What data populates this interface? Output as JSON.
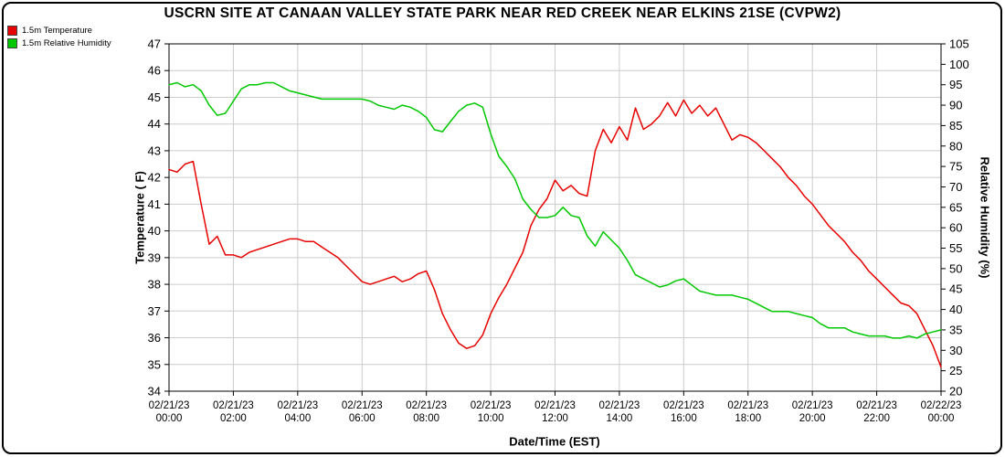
{
  "title": "USCRN SITE AT CANAAN VALLEY STATE PARK NEAR RED CREEK NEAR ELKINS 21SE (CVPW2)",
  "legend": [
    {
      "label": "1.5m Temperature",
      "color": "#e60000"
    },
    {
      "label": "1.5m Relative Humidity",
      "color": "#00c800"
    }
  ],
  "chart_data": {
    "type": "line",
    "title": "USCRN SITE AT CANAAN VALLEY STATE PARK NEAR RED CREEK NEAR ELKINS 21SE (CVPW2)",
    "xlabel": "Date/Time (EST)",
    "ylabel_left": "Temperature ( F)",
    "ylabel_right": "Relative Humidity (%)",
    "ylim_left": [
      34,
      47
    ],
    "ytick_step_left": 1,
    "ylim_right": [
      20,
      105
    ],
    "ytick_step_right": 5,
    "x_start_hour": 0,
    "x_end_hour": 24,
    "x_step_hour": 0.25,
    "grid": true,
    "grid_color": "#cccccc",
    "legend_position": "top-left",
    "x_ticks": [
      {
        "hour": 0,
        "date": "02/21/23",
        "time": "00:00"
      },
      {
        "hour": 2,
        "date": "02/21/23",
        "time": "02:00"
      },
      {
        "hour": 4,
        "date": "02/21/23",
        "time": "04:00"
      },
      {
        "hour": 6,
        "date": "02/21/23",
        "time": "06:00"
      },
      {
        "hour": 8,
        "date": "02/21/23",
        "time": "08:00"
      },
      {
        "hour": 10,
        "date": "02/21/23",
        "time": "10:00"
      },
      {
        "hour": 12,
        "date": "02/21/23",
        "time": "12:00"
      },
      {
        "hour": 14,
        "date": "02/21/23",
        "time": "14:00"
      },
      {
        "hour": 16,
        "date": "02/21/23",
        "time": "16:00"
      },
      {
        "hour": 18,
        "date": "02/21/23",
        "time": "18:00"
      },
      {
        "hour": 20,
        "date": "02/21/23",
        "time": "20:00"
      },
      {
        "hour": 22,
        "date": "02/21/23",
        "time": "22:00"
      },
      {
        "hour": 24,
        "date": "02/22/23",
        "time": "00:00"
      }
    ],
    "series": [
      {
        "name": "1.5m Temperature",
        "axis": "left",
        "color": "#e60000",
        "values": [
          42.3,
          42.2,
          42.5,
          42.6,
          41.0,
          39.5,
          39.8,
          39.1,
          39.1,
          39.0,
          39.2,
          39.3,
          39.4,
          39.5,
          39.6,
          39.7,
          39.7,
          39.6,
          39.6,
          39.4,
          39.2,
          39.0,
          38.7,
          38.4,
          38.1,
          38.0,
          38.1,
          38.2,
          38.3,
          38.1,
          38.2,
          38.4,
          38.5,
          37.8,
          36.9,
          36.3,
          35.8,
          35.6,
          35.7,
          36.1,
          36.9,
          37.5,
          38.0,
          38.6,
          39.2,
          40.2,
          40.8,
          41.2,
          41.9,
          41.5,
          41.7,
          41.4,
          41.3,
          43.0,
          43.8,
          43.3,
          43.9,
          43.4,
          44.6,
          43.8,
          44.0,
          44.3,
          44.8,
          44.3,
          44.9,
          44.4,
          44.7,
          44.3,
          44.6,
          44.0,
          43.4,
          43.6,
          43.5,
          43.3,
          43.0,
          42.7,
          42.4,
          42.0,
          41.7,
          41.3,
          41.0,
          40.6,
          40.2,
          39.9,
          39.6,
          39.2,
          38.9,
          38.5,
          38.2,
          37.9,
          37.6,
          37.3,
          37.2,
          36.9,
          36.3,
          35.7,
          34.9
        ]
      },
      {
        "name": "1.5m Relative Humidity",
        "axis": "right",
        "color": "#00c800",
        "values": [
          95,
          95.5,
          94.5,
          95,
          93.5,
          90,
          87.5,
          88,
          91,
          94,
          95,
          95,
          95.5,
          95.5,
          94.5,
          93.5,
          93,
          92.5,
          92,
          91.5,
          91.5,
          91.5,
          91.5,
          91.5,
          91.5,
          91,
          90,
          89.5,
          89,
          90,
          89.5,
          88.5,
          87,
          84,
          83.5,
          86,
          88.5,
          90,
          90.5,
          89.5,
          83,
          77.5,
          75,
          72,
          67,
          64.5,
          62.5,
          62.5,
          63,
          65,
          63,
          62.5,
          58,
          55.5,
          59,
          57,
          55,
          52,
          48.5,
          47.5,
          46.5,
          45.5,
          46,
          47,
          47.5,
          46,
          44.5,
          44,
          43.5,
          43.5,
          43.5,
          43,
          42.5,
          41.5,
          40.5,
          39.5,
          39.5,
          39.5,
          39,
          38.5,
          38,
          36.5,
          35.5,
          35.5,
          35.5,
          34.5,
          34,
          33.5,
          33.5,
          33.5,
          33,
          33,
          33.5,
          33,
          34,
          34.5,
          35
        ]
      }
    ]
  }
}
